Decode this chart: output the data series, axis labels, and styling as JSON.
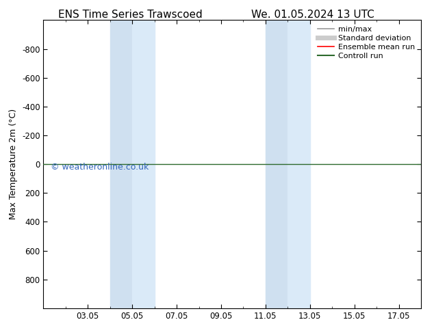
{
  "title_left": "ENS Time Series Trawscoed",
  "title_right": "We. 01.05.2024 13 UTC",
  "ylabel": "Max Temperature 2m (°C)",
  "ylim": [
    -1000,
    1000
  ],
  "yticks": [
    -800,
    -600,
    -400,
    -200,
    0,
    200,
    400,
    600,
    800
  ],
  "xtick_labels": [
    "03.05",
    "05.05",
    "07.05",
    "09.05",
    "11.05",
    "13.05",
    "15.05",
    "17.05"
  ],
  "xtick_positions": [
    3,
    5,
    7,
    9,
    11,
    13,
    15,
    17
  ],
  "x_min": 1,
  "x_max": 18,
  "shaded_bands": [
    [
      4,
      5
    ],
    [
      5,
      6
    ],
    [
      11,
      12
    ],
    [
      12,
      13
    ]
  ],
  "shaded_colors": [
    "#cfe0f0",
    "#daeaf8",
    "#cfe0f0",
    "#daeaf8"
  ],
  "watermark": "© weatheronline.co.uk",
  "watermark_color": "#3366bb",
  "line_y": 0,
  "line_color": "#2d6a2d",
  "legend_items": [
    {
      "label": "min/max",
      "color": "#999999",
      "lw": 1.2
    },
    {
      "label": "Standard deviation",
      "color": "#cccccc",
      "lw": 5
    },
    {
      "label": "Ensemble mean run",
      "color": "#ff0000",
      "lw": 1.2
    },
    {
      "label": "Controll run",
      "color": "#2d6a2d",
      "lw": 1.5
    }
  ],
  "bg_color": "#ffffff",
  "title_fontsize": 11,
  "axis_fontsize": 9,
  "tick_fontsize": 8.5,
  "legend_fontsize": 8
}
